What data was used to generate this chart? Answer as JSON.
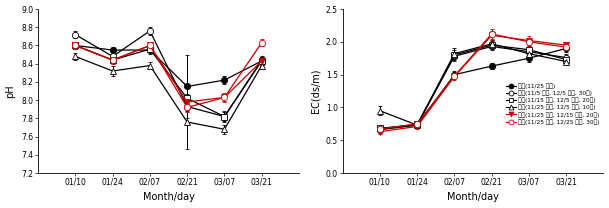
{
  "x_labels": [
    "01/10",
    "01/24",
    "02/07",
    "02/21",
    "03/07",
    "03/21"
  ],
  "x_positions": [
    1,
    2,
    3,
    4,
    5,
    6
  ],
  "x_lim": [
    0,
    7
  ],
  "ph": {
    "series": [
      {
        "label": "직파(11/25 파종)",
        "color": "black",
        "marker": "o",
        "markerfacecolor": "black",
        "y": [
          8.6,
          8.55,
          8.55,
          8.15,
          8.22,
          8.43
        ],
        "yerr": [
          0.04,
          0.03,
          0.04,
          0.35,
          0.04,
          0.04
        ]
      },
      {
        "label": "이앙(11/5 파종, 12/5 이앙, 30일)",
        "color": "black",
        "marker": "o",
        "markerfacecolor": "white",
        "y": [
          8.72,
          8.48,
          8.76,
          7.93,
          7.82,
          8.44
        ],
        "yerr": [
          0.04,
          0.03,
          0.04,
          0.05,
          0.05,
          0.04
        ]
      },
      {
        "label": "이앙(11/15 파종, 12/5 이앙, 20일)",
        "color": "black",
        "marker": "s",
        "markerfacecolor": "white",
        "y": [
          8.6,
          8.44,
          8.56,
          8.02,
          7.82,
          8.43
        ],
        "yerr": [
          0.04,
          0.03,
          0.03,
          0.05,
          0.06,
          0.04
        ]
      },
      {
        "label": "이앙(11/25 파종, 12/5 이앙, 10일)",
        "color": "black",
        "marker": "^",
        "markerfacecolor": "white",
        "y": [
          8.48,
          8.32,
          8.38,
          7.76,
          7.68,
          8.38
        ],
        "yerr": [
          0.04,
          0.05,
          0.04,
          0.3,
          0.05,
          0.04
        ]
      },
      {
        "label": "이앙(11/25 파종, 12/15 이앙, 20일)",
        "color": "#cc0000",
        "marker": "v",
        "markerfacecolor": "#cc0000",
        "y": [
          8.6,
          8.44,
          8.6,
          7.98,
          8.03,
          8.43
        ],
        "yerr": [
          0.04,
          0.04,
          0.04,
          0.05,
          0.04,
          0.04
        ]
      },
      {
        "label": "이앙(11/25 파종, 12/25 이앙, 30일)",
        "color": "#cc0000",
        "marker": "o",
        "markerfacecolor": "white",
        "y": [
          8.6,
          8.44,
          8.6,
          7.92,
          8.03,
          8.63
        ],
        "yerr": [
          0.04,
          0.04,
          0.04,
          0.05,
          0.05,
          0.04
        ]
      }
    ],
    "ylabel": "pH",
    "ylim": [
      7.2,
      9.0
    ],
    "yticks": [
      7.2,
      7.4,
      7.6,
      7.8,
      8.0,
      8.2,
      8.4,
      8.6,
      8.8,
      9.0
    ]
  },
  "ec": {
    "series": [
      {
        "label": "직파(11/25 파종)",
        "color": "black",
        "marker": "o",
        "markerfacecolor": "black",
        "y": [
          0.68,
          0.73,
          1.5,
          1.63,
          1.75,
          1.9
        ],
        "yerr": [
          0.04,
          0.04,
          0.05,
          0.05,
          0.05,
          0.05
        ]
      },
      {
        "label": "이앙(11/5 파종, 12/5 이앙, 30일)",
        "color": "black",
        "marker": "o",
        "markerfacecolor": "white",
        "y": [
          0.66,
          0.73,
          1.78,
          1.93,
          1.85,
          1.76
        ],
        "yerr": [
          0.05,
          0.04,
          0.07,
          0.06,
          0.05,
          0.05
        ]
      },
      {
        "label": "이앙(11/15 파종, 12/5 이앙, 20일)",
        "color": "black",
        "marker": "s",
        "markerfacecolor": "white",
        "y": [
          0.68,
          0.74,
          1.8,
          1.95,
          1.88,
          1.73
        ],
        "yerr": [
          0.04,
          0.04,
          0.07,
          0.06,
          0.05,
          0.05
        ]
      },
      {
        "label": "이앙(11/25 파종, 12/5 이앙, 10일)",
        "color": "black",
        "marker": "^",
        "markerfacecolor": "white",
        "y": [
          0.95,
          0.73,
          1.82,
          1.97,
          1.82,
          1.7
        ],
        "yerr": [
          0.07,
          0.04,
          0.08,
          0.06,
          0.05,
          0.05
        ]
      },
      {
        "label": "이앙(11/25 파종, 12/15 이앙, 20일)",
        "color": "#cc0000",
        "marker": "v",
        "markerfacecolor": "#cc0000",
        "y": [
          0.63,
          0.71,
          1.47,
          2.1,
          2.02,
          1.95
        ],
        "yerr": [
          0.04,
          0.04,
          0.05,
          0.07,
          0.07,
          0.05
        ]
      },
      {
        "label": "이앙(11/25 파종, 12/25 이앙, 30일)",
        "color": "#cc0000",
        "marker": "o",
        "markerfacecolor": "white",
        "y": [
          0.67,
          0.75,
          1.48,
          2.12,
          2.0,
          1.92
        ],
        "yerr": [
          0.04,
          0.04,
          0.05,
          0.07,
          0.06,
          0.05
        ]
      }
    ],
    "ylabel": "EC(ds/m)",
    "ylim": [
      0.0,
      2.5
    ],
    "yticks": [
      0.0,
      0.5,
      1.0,
      1.5,
      2.0,
      2.5
    ],
    "legend_markers": [
      "o",
      "o",
      "s",
      "^",
      "v",
      "o"
    ],
    "legend_colors": [
      "black",
      "black",
      "black",
      "black",
      "#cc0000",
      "#cc0000"
    ],
    "legend_mfcs": [
      "black",
      "white",
      "white",
      "white",
      "#cc0000",
      "white"
    ],
    "legend_labels": [
      "직파(11/25 파종)",
      "이앙(11/5 파종, 12/5 이앙, 30일)",
      "이앙(11/15 파종, 12/5 이앙, 20일)",
      "이앙(11/25 파종, 12/5 이앙, 10일)",
      "이앙(11/25 파종, 12/15 이앙, 20일)",
      "이앙(11/25 파종, 12/25 이앙, 30일)"
    ]
  },
  "xlabel": "Month/day",
  "background_color": "white",
  "elinewidth": 0.7,
  "capsize": 1.5,
  "markersize": 4.5,
  "linewidth": 0.9
}
